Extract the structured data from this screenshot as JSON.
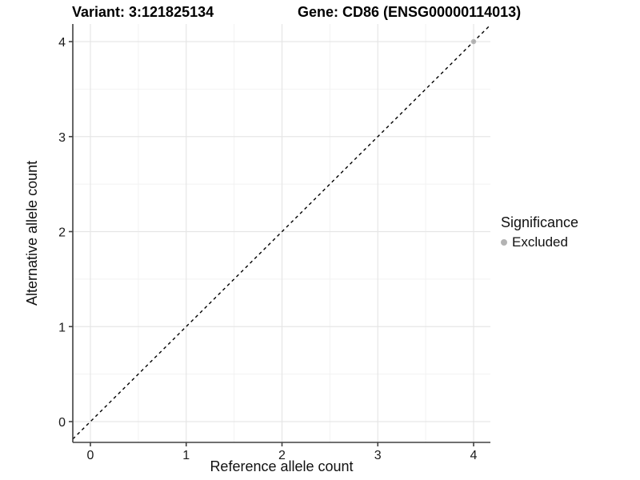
{
  "figure": {
    "titles": {
      "variant": "Variant: 3:121825134",
      "gene": "Gene: CD86 (ENSG00000114013)"
    }
  },
  "chart_data": {
    "type": "scatter",
    "title_left": "Variant: 3:121825134",
    "title_right": "Gene: CD86 (ENSG00000114013)",
    "xlabel": "Reference allele count",
    "ylabel": "Alternative allele count",
    "xlim": [
      -0.18,
      4.18
    ],
    "ylim": [
      -0.22,
      4.19
    ],
    "x_ticks": [
      0,
      1,
      2,
      3,
      4
    ],
    "y_ticks": [
      0,
      1,
      2,
      3,
      4
    ],
    "x_minor_ticks": [
      0.5,
      1.5,
      2.5,
      3.5
    ],
    "y_minor_ticks": [
      0.5,
      1.5,
      2.5,
      3.5
    ],
    "grid": "on",
    "series": [
      {
        "name": "Excluded",
        "color": "#b3b3b3",
        "points": [
          {
            "x": 4,
            "y": 4
          }
        ]
      }
    ],
    "reference_line": {
      "kind": "identity",
      "slope": 1,
      "intercept": 0,
      "style": "dashed",
      "color": "#000000"
    },
    "legend": {
      "title": "Significance",
      "position": "right",
      "items": [
        {
          "label": "Excluded",
          "color": "#b3b3b3",
          "marker": "circle"
        }
      ]
    }
  },
  "colors": {
    "background": "#ffffff",
    "grid_major": "#e6e6e6",
    "grid_minor": "#f2f2f2",
    "axis_line": "#404040",
    "tick_text": "#1a1a1a",
    "title_text": "#000000",
    "point_gray": "#b3b3b3"
  }
}
